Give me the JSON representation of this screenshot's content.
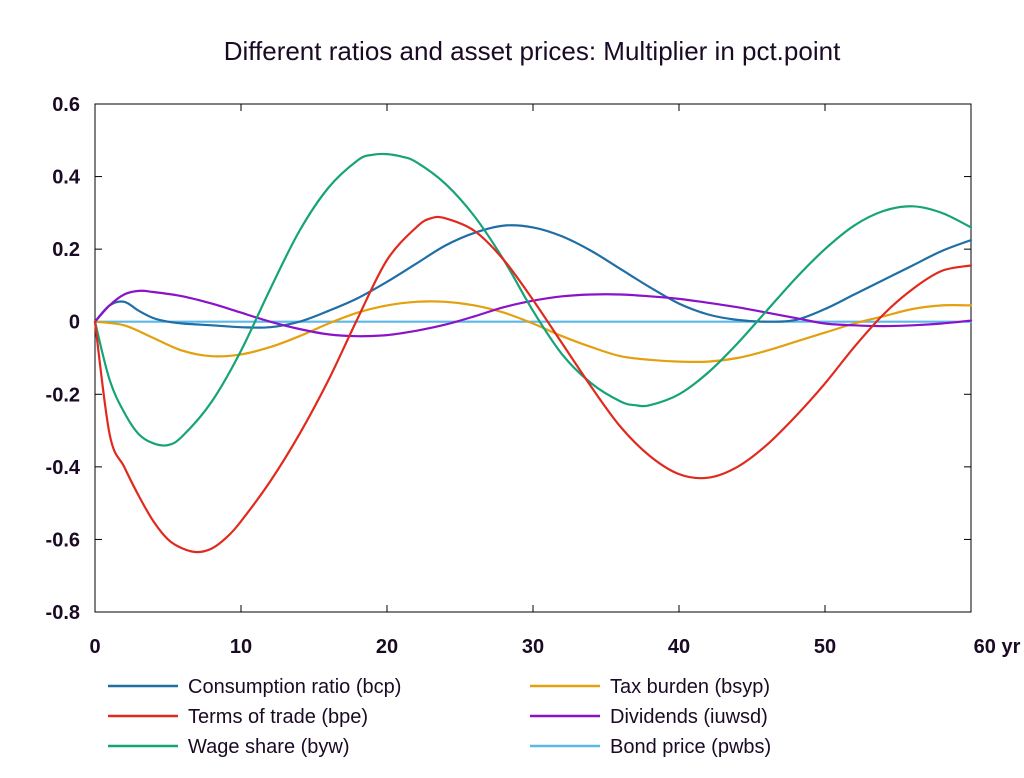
{
  "chart_data": {
    "type": "line",
    "title": "Different ratios and asset prices: Multiplier in pct.point",
    "xlabel": "",
    "ylabel": "",
    "x_unit": "yr",
    "xlim": [
      0,
      60
    ],
    "ylim": [
      -0.8,
      0.6
    ],
    "x_ticks": [
      "0",
      "10",
      "20",
      "30",
      "40",
      "50",
      "60 yr"
    ],
    "y_ticks": [
      "0.6",
      "0.4",
      "0.2",
      "0",
      "-0.2",
      "-0.4",
      "-0.6",
      "-0.8"
    ],
    "x_tick_values": [
      0,
      10,
      20,
      30,
      40,
      50,
      60
    ],
    "y_tick_values": [
      0.6,
      0.4,
      0.2,
      0,
      -0.2,
      -0.4,
      -0.6,
      -0.8
    ],
    "grid": false,
    "legend_position": "bottom",
    "series": [
      {
        "name": "Consumption ratio (bcp)",
        "color": "#1f6ea6",
        "x": [
          0,
          1,
          2,
          3,
          4,
          5,
          6,
          8,
          10,
          12,
          14,
          16,
          18,
          20,
          22,
          24,
          26,
          28,
          30,
          32,
          34,
          36,
          38,
          40,
          42,
          44,
          46,
          48,
          50,
          52,
          54,
          56,
          58,
          60
        ],
        "y": [
          0,
          0.045,
          0.055,
          0.03,
          0.01,
          0.0,
          -0.005,
          -0.01,
          -0.015,
          -0.015,
          0.0,
          0.03,
          0.065,
          0.11,
          0.16,
          0.21,
          0.245,
          0.265,
          0.26,
          0.235,
          0.195,
          0.145,
          0.095,
          0.05,
          0.02,
          0.005,
          0.0,
          0.005,
          0.035,
          0.075,
          0.115,
          0.155,
          0.195,
          0.225
        ]
      },
      {
        "name": "Tax burden (bsyp)",
        "color": "#e3a00f",
        "x": [
          0,
          2,
          4,
          6,
          8,
          10,
          12,
          14,
          16,
          18,
          20,
          22,
          24,
          26,
          28,
          30,
          32,
          34,
          36,
          38,
          40,
          42,
          44,
          46,
          48,
          50,
          52,
          54,
          56,
          58,
          60
        ],
        "y": [
          0,
          -0.01,
          -0.045,
          -0.08,
          -0.095,
          -0.09,
          -0.07,
          -0.04,
          -0.005,
          0.025,
          0.045,
          0.055,
          0.055,
          0.045,
          0.025,
          -0.005,
          -0.04,
          -0.07,
          -0.095,
          -0.105,
          -0.11,
          -0.11,
          -0.1,
          -0.08,
          -0.055,
          -0.03,
          -0.005,
          0.015,
          0.035,
          0.045,
          0.045
        ]
      },
      {
        "name": "Terms of trade (bpe)",
        "color": "#e02a1e",
        "x": [
          0,
          1,
          2,
          3,
          4,
          5,
          6,
          7,
          8,
          9,
          10,
          12,
          14,
          16,
          18,
          20,
          22,
          23,
          24,
          26,
          28,
          30,
          32,
          34,
          36,
          38,
          40,
          42,
          44,
          46,
          48,
          50,
          52,
          54,
          56,
          58,
          60
        ],
        "y": [
          0,
          -0.31,
          -0.4,
          -0.48,
          -0.55,
          -0.6,
          -0.625,
          -0.635,
          -0.625,
          -0.595,
          -0.55,
          -0.44,
          -0.31,
          -0.16,
          0.01,
          0.17,
          0.26,
          0.285,
          0.285,
          0.25,
          0.17,
          0.06,
          -0.06,
          -0.18,
          -0.29,
          -0.37,
          -0.42,
          -0.43,
          -0.4,
          -0.34,
          -0.26,
          -0.17,
          -0.07,
          0.02,
          0.09,
          0.14,
          0.155
        ]
      },
      {
        "name": "Dividends (iuwsd)",
        "color": "#8a12c9",
        "x": [
          0,
          1,
          2,
          3,
          4,
          6,
          8,
          10,
          12,
          14,
          16,
          18,
          20,
          22,
          24,
          26,
          28,
          30,
          32,
          34,
          36,
          38,
          40,
          42,
          44,
          46,
          48,
          50,
          52,
          54,
          56,
          58,
          60
        ],
        "y": [
          0,
          0.045,
          0.075,
          0.085,
          0.082,
          0.07,
          0.05,
          0.025,
          0.0,
          -0.02,
          -0.035,
          -0.04,
          -0.037,
          -0.025,
          -0.008,
          0.015,
          0.04,
          0.058,
          0.07,
          0.075,
          0.075,
          0.07,
          0.063,
          0.052,
          0.04,
          0.025,
          0.01,
          -0.005,
          -0.01,
          -0.012,
          -0.01,
          -0.005,
          0.003
        ]
      },
      {
        "name": "Wage share (byw)",
        "color": "#16a378",
        "x": [
          0,
          1,
          2,
          3,
          4,
          5,
          6,
          8,
          10,
          12,
          14,
          16,
          18,
          19,
          20,
          21,
          22,
          24,
          26,
          28,
          30,
          32,
          34,
          36,
          37,
          38,
          40,
          42,
          44,
          46,
          48,
          50,
          52,
          54,
          56,
          58,
          60
        ],
        "y": [
          0,
          -0.16,
          -0.25,
          -0.31,
          -0.335,
          -0.34,
          -0.315,
          -0.22,
          -0.08,
          0.09,
          0.25,
          0.37,
          0.445,
          0.46,
          0.462,
          0.455,
          0.44,
          0.38,
          0.29,
          0.17,
          0.03,
          -0.09,
          -0.17,
          -0.22,
          -0.23,
          -0.23,
          -0.2,
          -0.14,
          -0.06,
          0.03,
          0.12,
          0.2,
          0.265,
          0.305,
          0.318,
          0.3,
          0.26
        ]
      },
      {
        "name": "Bond price (pwbs)",
        "color": "#5bb8ea",
        "x": [
          0,
          60
        ],
        "y": [
          0,
          0
        ]
      }
    ]
  }
}
